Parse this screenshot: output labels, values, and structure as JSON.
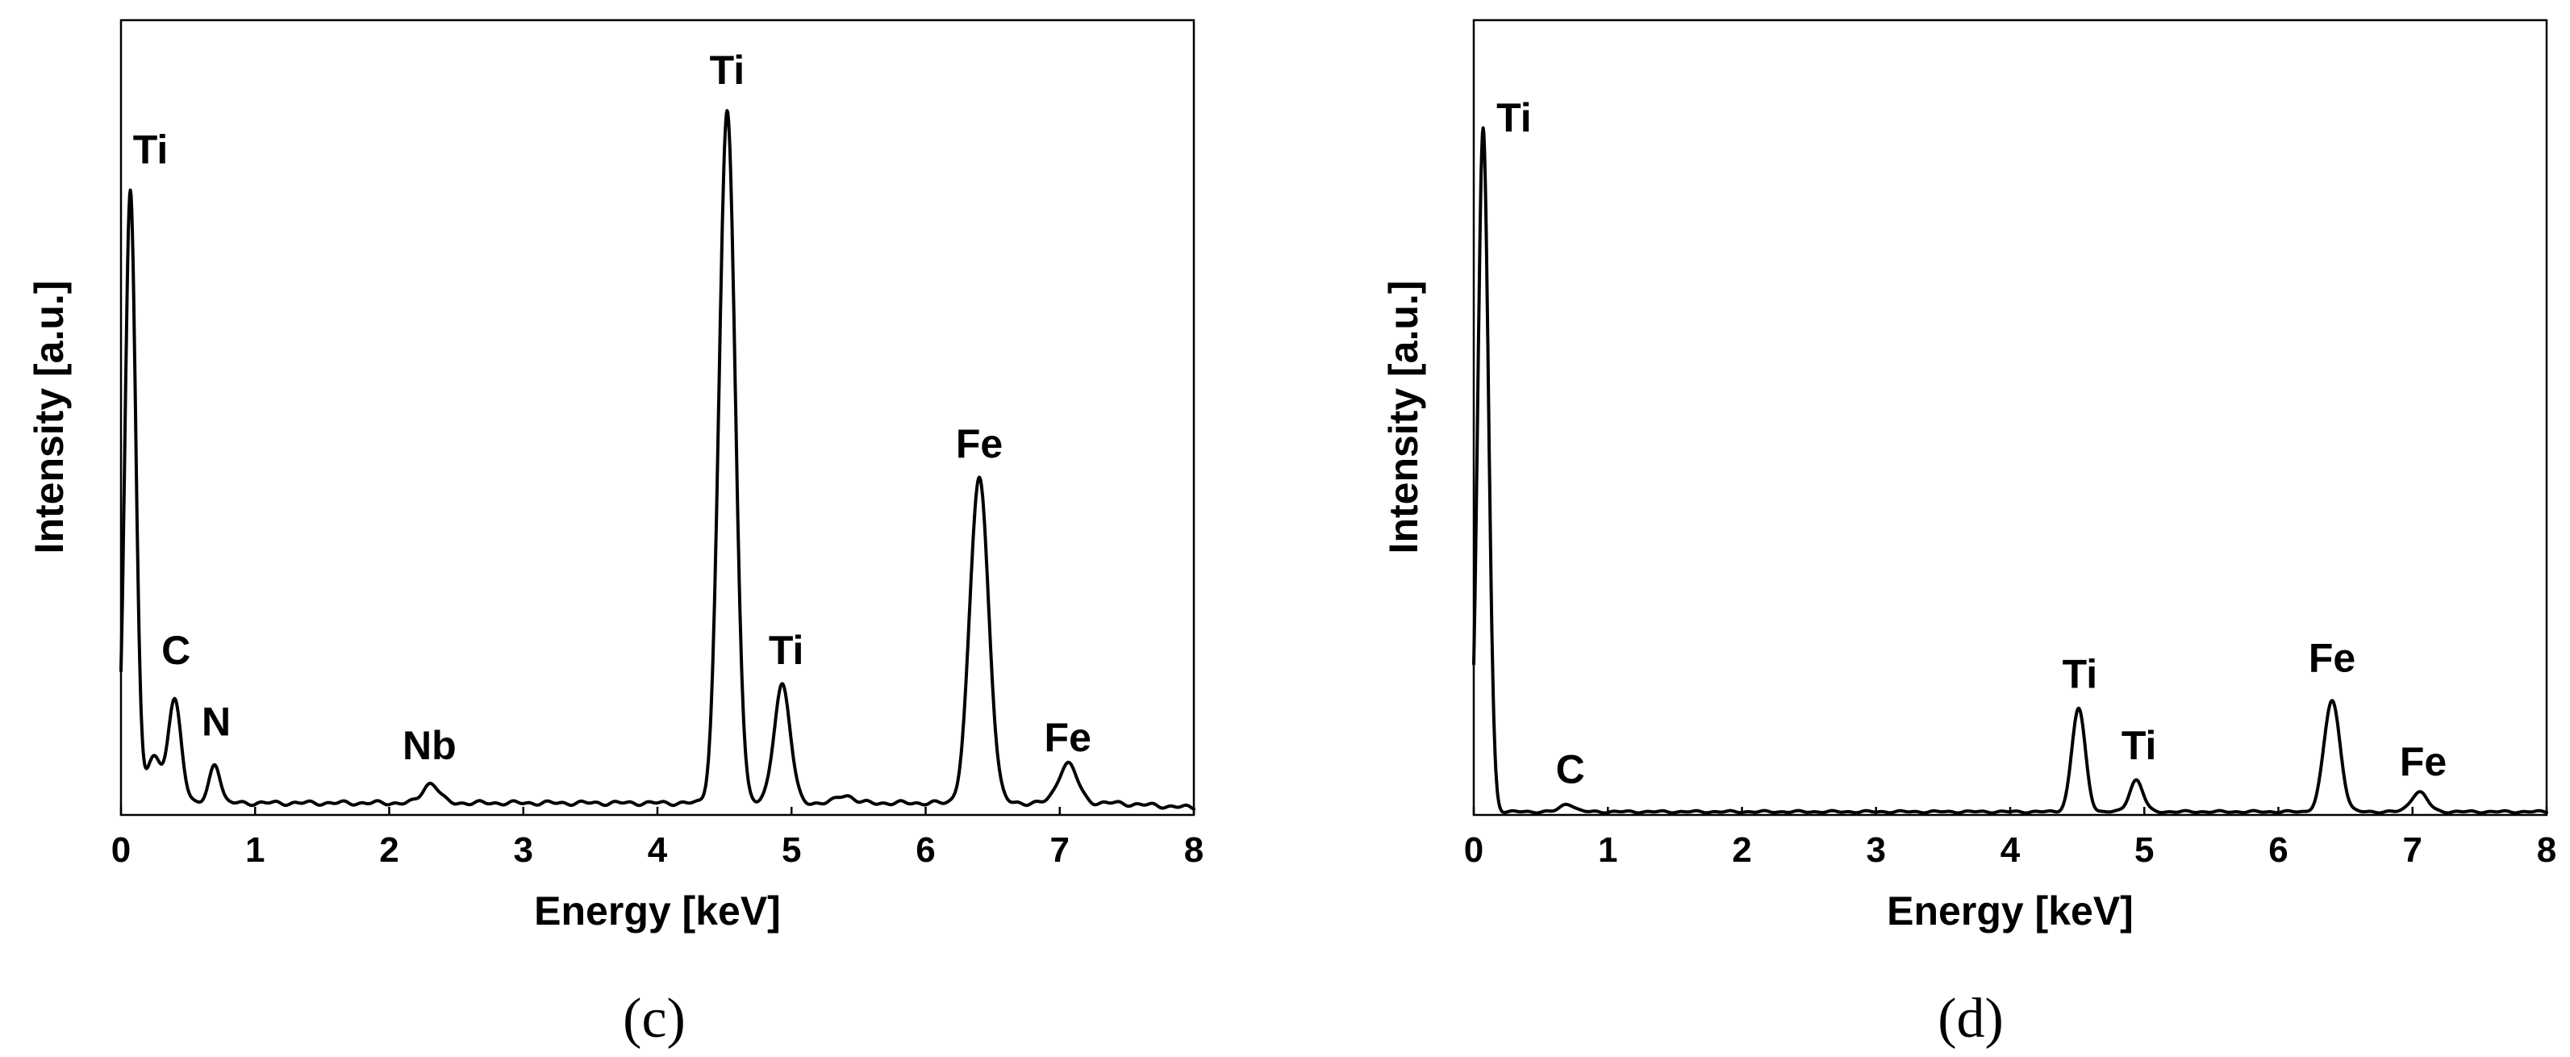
{
  "chart_data": [
    {
      "type": "line",
      "panel": "(c)",
      "xlabel": "Energy [keV]",
      "ylabel": "Intensity [a.u.]",
      "xlim": [
        0,
        8
      ],
      "ylim": [
        0,
        1
      ],
      "xticks": [
        0,
        1,
        2,
        3,
        4,
        5,
        6,
        7,
        8
      ],
      "y_tick_labels": false,
      "grid": false,
      "baseline": 0.015,
      "peaks": [
        {
          "x": 0.07,
          "height": 0.77,
          "width": 0.04
        },
        {
          "x": 0.24,
          "height": 0.06,
          "width": 0.05
        },
        {
          "x": 0.4,
          "height": 0.13,
          "width": 0.05
        },
        {
          "x": 0.7,
          "height": 0.05,
          "width": 0.04
        },
        {
          "x": 2.31,
          "height": 0.025,
          "width": 0.06
        },
        {
          "x": 4.52,
          "height": 0.87,
          "width": 0.06
        },
        {
          "x": 4.93,
          "height": 0.15,
          "width": 0.06
        },
        {
          "x": 5.4,
          "height": 0.01,
          "width": 0.06
        },
        {
          "x": 6.4,
          "height": 0.41,
          "width": 0.07
        },
        {
          "x": 7.06,
          "height": 0.05,
          "width": 0.07
        }
      ],
      "annotations": [
        {
          "text": "Ti",
          "x": 0.22,
          "y": 0.82
        },
        {
          "text": "C",
          "x": 0.41,
          "y": 0.19
        },
        {
          "text": "N",
          "x": 0.71,
          "y": 0.1
        },
        {
          "text": "Nb",
          "x": 2.3,
          "y": 0.07
        },
        {
          "text": "Ti",
          "x": 4.52,
          "y": 0.92
        },
        {
          "text": "Ti",
          "x": 4.96,
          "y": 0.19
        },
        {
          "text": "Fe",
          "x": 6.4,
          "y": 0.45
        },
        {
          "text": "Fe",
          "x": 7.06,
          "y": 0.08
        }
      ]
    },
    {
      "type": "line",
      "panel": "(d)",
      "xlabel": "Energy [keV]",
      "ylabel": "Intensity [a.u.]",
      "xlim": [
        0,
        8
      ],
      "ylim": [
        0,
        1
      ],
      "xticks": [
        0,
        1,
        2,
        3,
        4,
        5,
        6,
        7,
        8
      ],
      "y_tick_labels": false,
      "grid": false,
      "baseline": 0.004,
      "peaks": [
        {
          "x": 0.07,
          "height": 0.86,
          "width": 0.04
        },
        {
          "x": 0.7,
          "height": 0.01,
          "width": 0.05
        },
        {
          "x": 4.51,
          "height": 0.13,
          "width": 0.05
        },
        {
          "x": 4.94,
          "height": 0.04,
          "width": 0.05
        },
        {
          "x": 6.4,
          "height": 0.14,
          "width": 0.06
        },
        {
          "x": 7.05,
          "height": 0.025,
          "width": 0.06
        }
      ],
      "annotations": [
        {
          "text": "Ti",
          "x": 0.3,
          "y": 0.86
        },
        {
          "text": "C",
          "x": 0.72,
          "y": 0.04
        },
        {
          "text": "Ti",
          "x": 4.52,
          "y": 0.16
        },
        {
          "text": "Ti",
          "x": 4.96,
          "y": 0.07
        },
        {
          "text": "Fe",
          "x": 6.4,
          "y": 0.18
        },
        {
          "text": "Fe",
          "x": 7.08,
          "y": 0.05
        }
      ]
    }
  ]
}
